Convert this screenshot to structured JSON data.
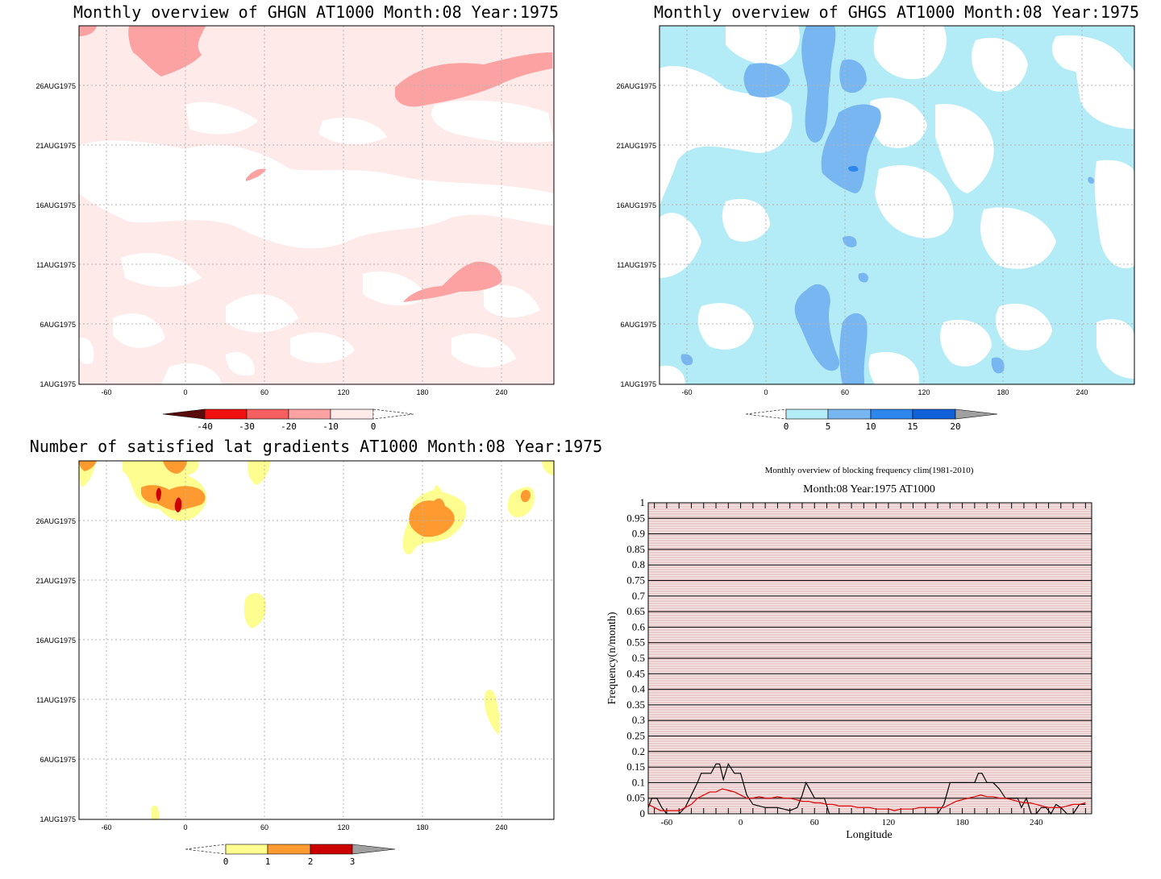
{
  "panels": {
    "ghgn": {
      "title": "Monthly overview of GHGN AT1000 Month:08 Year:1975",
      "x_ticks": [
        "-60",
        "0",
        "60",
        "120",
        "180",
        "240"
      ],
      "y_ticks": [
        "1AUG1975",
        "6AUG1975",
        "11AUG1975",
        "16AUG1975",
        "21AUG1975",
        "26AUG1975"
      ],
      "colorbar": {
        "labels": [
          "-40",
          "-30",
          "-20",
          "-10",
          "0"
        ],
        "colors": [
          "#5a0a0a",
          "#f01010",
          "#f46060",
          "#fca2a2",
          "#ffeaea"
        ]
      }
    },
    "ghgs": {
      "title": "Monthly overview of GHGS AT1000 Month:08 Year:1975",
      "x_ticks": [
        "-60",
        "0",
        "60",
        "120",
        "180",
        "240"
      ],
      "y_ticks": [
        "1AUG1975",
        "6AUG1975",
        "11AUG1975",
        "16AUG1975",
        "21AUG1975",
        "26AUG1975"
      ],
      "colorbar": {
        "labels": [
          "0",
          "5",
          "10",
          "15",
          "20"
        ],
        "colors": [
          "#b3ecf6",
          "#78b6f2",
          "#2c86ec",
          "#1060d8",
          "#a0a0a0"
        ]
      }
    },
    "gradients": {
      "title": "Number of satisfied lat gradients AT1000 Month:08 Year:1975",
      "x_ticks": [
        "-60",
        "0",
        "60",
        "120",
        "180",
        "240"
      ],
      "y_ticks": [
        "1AUG1975",
        "6AUG1975",
        "11AUG1975",
        "16AUG1975",
        "21AUG1975",
        "26AUG1975"
      ],
      "colorbar": {
        "labels": [
          "0",
          "1",
          "2",
          "3"
        ],
        "colors": [
          "#fefe90",
          "#fe9a30",
          "#cc0000",
          "#a0a0a0"
        ]
      }
    },
    "frequency": {
      "title": "Monthly overview of blocking frequency clim(1981-2010)",
      "subtitle": "Month:08 Year:1975  AT1000",
      "ylabel": "Frequency(n/month)",
      "xlabel": "Longitude"
    }
  },
  "chart_data": [
    {
      "type": "heatmap",
      "title": "Monthly overview of GHGN AT1000 Month:08 Year:1975",
      "xlim": [
        -80,
        280
      ],
      "ylim": [
        "1AUG1975",
        "31AUG1975"
      ],
      "grid": true,
      "color_levels": [
        -40,
        -30,
        -20,
        -10,
        0
      ],
      "fills": [
        {
          "level": "0 to -10",
          "color": "#ffeaea"
        },
        {
          "level": "-10 to -20",
          "color": "#fca2a2"
        }
      ],
      "regions_minus10_to_minus20": [
        {
          "lon_range": [
            -40,
            15
          ],
          "date": "29AUG-31AUG1975"
        },
        {
          "lon_range": [
            165,
            280
          ],
          "date": "24AUG-28AUG1975"
        },
        {
          "lon_range": [
            165,
            240
          ],
          "date": "8AUG-11AUG1975"
        },
        {
          "lon_range": [
            45,
            60
          ],
          "date": "19AUG1975"
        }
      ]
    },
    {
      "type": "heatmap",
      "title": "Monthly overview of GHGS AT1000 Month:08 Year:1975",
      "xlim": [
        -80,
        280
      ],
      "ylim": [
        "1AUG1975",
        "31AUG1975"
      ],
      "grid": true,
      "color_levels": [
        0,
        5,
        10,
        15,
        20
      ],
      "fills": [
        {
          "level": "0 to 5",
          "color": "#b3ecf6"
        },
        {
          "level": "5 to 10",
          "color": "#78b6f2"
        },
        {
          "level": "10 to 15",
          "color": "#2c86ec"
        }
      ],
      "regions_5_to_10": [
        {
          "lon_range": [
            30,
            90
          ],
          "date": "1AUG-31AUG1975"
        },
        {
          "lon_range": [
            -10,
            35
          ],
          "date": "25AUG-29AUG1975"
        },
        {
          "lon_range": [
            10,
            50
          ],
          "date": "3AUG-9AUG1975"
        }
      ]
    },
    {
      "type": "heatmap",
      "title": "Number of satisfied lat gradients AT1000 Month:08 Year:1975",
      "xlim": [
        -80,
        280
      ],
      "ylim": [
        "1AUG1975",
        "31AUG1975"
      ],
      "grid": true,
      "color_levels": [
        0,
        1,
        2,
        3
      ],
      "regions": [
        {
          "lon_range": [
            -45,
            15
          ],
          "date": "26AUG-30AUG1975",
          "max_level": 3
        },
        {
          "lon_range": [
            165,
            215
          ],
          "date": "24AUG-28AUG1975",
          "max_level": 2
        },
        {
          "lon_range": [
            240,
            265
          ],
          "date": "26AUG-28AUG1975",
          "max_level": 2
        },
        {
          "lon_range": [
            45,
            60
          ],
          "date": "17AUG-20AUG1975",
          "max_level": 1
        },
        {
          "lon_range": [
            225,
            240
          ],
          "date": "8AUG-12AUG1975",
          "max_level": 1
        }
      ]
    },
    {
      "type": "line",
      "title": "Monthly overview of blocking frequency clim(1981-2010)",
      "subtitle": "Month:08 Year:1975  AT1000",
      "xlabel": "Longitude",
      "ylabel": "Frequency(n/month)",
      "xlim": [
        -75,
        285
      ],
      "ylim": [
        0,
        1
      ],
      "x_ticks": [
        -60,
        0,
        60,
        120,
        180,
        240
      ],
      "y_ticks": [
        0,
        0.05,
        0.1,
        0.15,
        0.2,
        0.25,
        0.3,
        0.35,
        0.4,
        0.45,
        0.5,
        0.55,
        0.6,
        0.65,
        0.7,
        0.75,
        0.8,
        0.85,
        0.9,
        0.95,
        1
      ],
      "grid": true,
      "series": [
        {
          "color": "#000000",
          "x": [
            -75,
            -72,
            -68,
            -64,
            -60,
            -55,
            -50,
            -45,
            -40,
            -35,
            -32,
            -28,
            -24,
            -20,
            -17,
            -14,
            -10,
            -5,
            0,
            5,
            10,
            20,
            30,
            40,
            46,
            50,
            53,
            56,
            60,
            64,
            68,
            72,
            80,
            90,
            100,
            110,
            120,
            130,
            140,
            150,
            160,
            165,
            170,
            175,
            180,
            185,
            190,
            193,
            196,
            200,
            205,
            210,
            215,
            220,
            225,
            228,
            232,
            236,
            240,
            244,
            248,
            252,
            256,
            260,
            265,
            270,
            275,
            280
          ],
          "values": [
            0.02,
            0.05,
            0.05,
            0.02,
            0.0,
            0.0,
            0.0,
            0.02,
            0.06,
            0.1,
            0.13,
            0.13,
            0.13,
            0.16,
            0.16,
            0.11,
            0.16,
            0.13,
            0.13,
            0.06,
            0.03,
            0.02,
            0.02,
            0.01,
            0.02,
            0.06,
            0.1,
            0.08,
            0.05,
            0.05,
            0.05,
            0.0,
            0.0,
            0.0,
            0.0,
            0.0,
            0.0,
            0.0,
            0.0,
            0.0,
            0.0,
            0.03,
            0.1,
            0.1,
            0.1,
            0.1,
            0.1,
            0.13,
            0.13,
            0.1,
            0.1,
            0.08,
            0.05,
            0.05,
            0.05,
            0.02,
            0.05,
            0.0,
            0.0,
            0.02,
            0.02,
            0.0,
            0.03,
            0.02,
            0.0,
            0.0,
            0.03,
            0.03
          ]
        },
        {
          "color": "#e00000",
          "x": [
            -75,
            -70,
            -65,
            -60,
            -55,
            -50,
            -45,
            -40,
            -35,
            -30,
            -25,
            -20,
            -15,
            -10,
            -5,
            0,
            5,
            10,
            15,
            20,
            25,
            30,
            35,
            40,
            45,
            50,
            55,
            60,
            65,
            70,
            75,
            80,
            85,
            90,
            95,
            100,
            105,
            110,
            115,
            120,
            125,
            130,
            135,
            140,
            145,
            150,
            155,
            160,
            165,
            170,
            175,
            180,
            185,
            190,
            195,
            200,
            205,
            210,
            215,
            220,
            225,
            230,
            235,
            240,
            245,
            250,
            255,
            260,
            265,
            270,
            275,
            280
          ],
          "values": [
            0.03,
            0.02,
            0.01,
            0.01,
            0.01,
            0.01,
            0.02,
            0.03,
            0.05,
            0.06,
            0.07,
            0.07,
            0.08,
            0.075,
            0.07,
            0.06,
            0.05,
            0.05,
            0.055,
            0.05,
            0.05,
            0.055,
            0.05,
            0.05,
            0.045,
            0.04,
            0.04,
            0.035,
            0.035,
            0.03,
            0.03,
            0.025,
            0.025,
            0.025,
            0.02,
            0.02,
            0.02,
            0.015,
            0.015,
            0.015,
            0.01,
            0.015,
            0.015,
            0.015,
            0.02,
            0.02,
            0.02,
            0.02,
            0.02,
            0.03,
            0.04,
            0.045,
            0.05,
            0.055,
            0.06,
            0.055,
            0.055,
            0.05,
            0.05,
            0.045,
            0.04,
            0.035,
            0.035,
            0.03,
            0.025,
            0.02,
            0.02,
            0.02,
            0.025,
            0.03,
            0.03,
            0.035
          ]
        }
      ]
    }
  ]
}
